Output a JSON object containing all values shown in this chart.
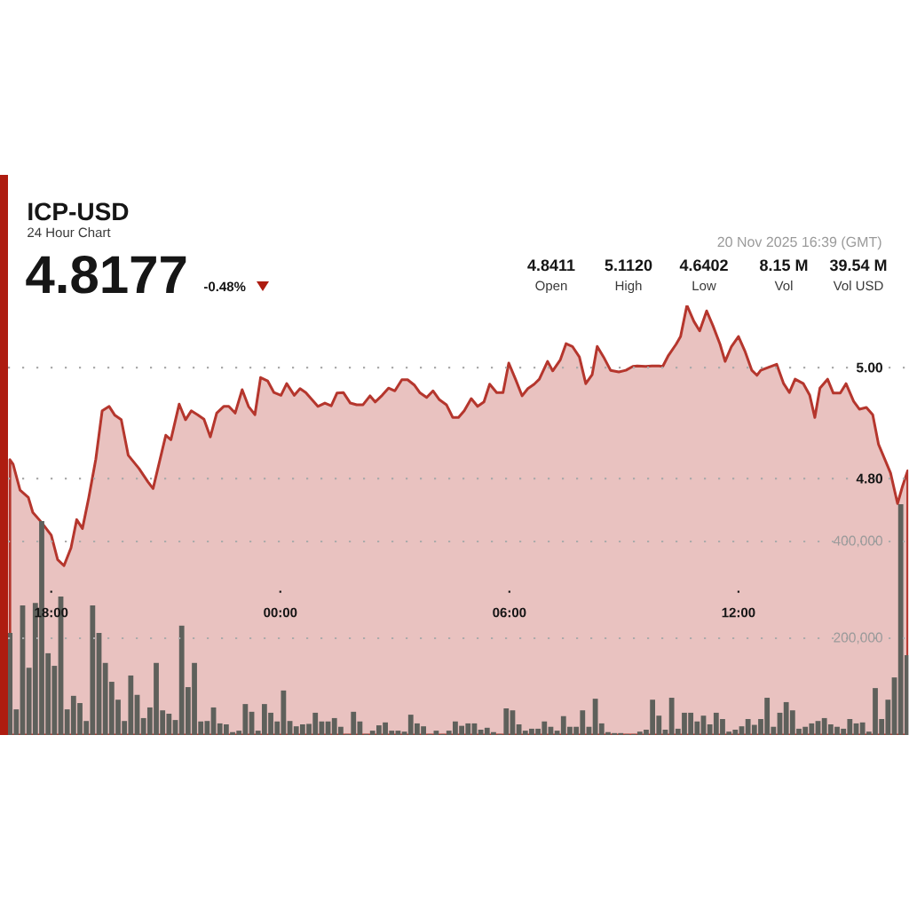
{
  "chart_data": {
    "type": "area",
    "title": "ICP-USD",
    "subtitle": "24 Hour Chart",
    "annotations": [
      "4.8177",
      "-0.48%",
      "4.8411",
      "Open",
      "5.1120",
      "High",
      "4.6402",
      "Low",
      "8.15 M",
      "Vol",
      "39.54 M",
      "Vol USD",
      "20 Nov 2025 16:39 (GMT)"
    ],
    "xlim": [
      "2025-11-19T16:52",
      "2025-11-20T16:28"
    ],
    "xticks": [
      {
        "value": "2025-11-19T18:00",
        "label": "18:00"
      },
      {
        "value": "2025-11-20T00:00",
        "label": "00:00"
      },
      {
        "value": "2025-11-20T06:00",
        "label": "06:00"
      },
      {
        "value": "2025-11-20T12:00",
        "label": "12:00"
      }
    ],
    "ylim": [
      4.338,
      5.112
    ],
    "yticks": [
      {
        "value": 4.8,
        "label": "4.80"
      },
      {
        "value": 5.0,
        "label": "5.00"
      }
    ],
    "y2lim": [
      0,
      888000
    ],
    "y2ticks": [
      {
        "value": 200000,
        "label": "200,000"
      },
      {
        "value": 400000,
        "label": "400,000"
      }
    ],
    "grid": "y",
    "series": [
      {
        "color": "#b5362d",
        "x": [
          "2025-11-19T16:55",
          "2025-11-19T17:00",
          "2025-11-19T17:11",
          "2025-11-19T17:24",
          "2025-11-19T17:31",
          "2025-11-19T17:44",
          "2025-11-19T18:00",
          "2025-11-19T18:10",
          "2025-11-19T18:20",
          "2025-11-19T18:31",
          "2025-11-19T18:40",
          "2025-11-19T18:49",
          "2025-11-19T18:59",
          "2025-11-19T19:10",
          "2025-11-19T19:20",
          "2025-11-19T19:31",
          "2025-11-19T19:40",
          "2025-11-19T19:50",
          "2025-11-19T20:01",
          "2025-11-19T20:18",
          "2025-11-19T20:32",
          "2025-11-19T20:40",
          "2025-11-19T21:00",
          "2025-11-19T21:08",
          "2025-11-19T21:21",
          "2025-11-19T21:31",
          "2025-11-19T21:40",
          "2025-11-19T21:50",
          "2025-11-19T22:00",
          "2025-11-19T22:10",
          "2025-11-19T22:20",
          "2025-11-19T22:31",
          "2025-11-19T22:39",
          "2025-11-19T22:49",
          "2025-11-19T23:00",
          "2025-11-19T23:10",
          "2025-11-19T23:20",
          "2025-11-19T23:29",
          "2025-11-19T23:40",
          "2025-11-19T23:50",
          "2025-11-20T00:01",
          "2025-11-20T00:10",
          "2025-11-20T00:22",
          "2025-11-20T00:31",
          "2025-11-20T00:40",
          "2025-11-20T00:59",
          "2025-11-20T01:10",
          "2025-11-20T01:20",
          "2025-11-20T01:29",
          "2025-11-20T01:39",
          "2025-11-20T01:50",
          "2025-11-20T02:00",
          "2025-11-20T02:10",
          "2025-11-20T02:21",
          "2025-11-20T02:29",
          "2025-11-20T02:40",
          "2025-11-20T02:50",
          "2025-11-20T03:00",
          "2025-11-20T03:11",
          "2025-11-20T03:20",
          "2025-11-20T03:31",
          "2025-11-20T03:39",
          "2025-11-20T03:50",
          "2025-11-20T04:00",
          "2025-11-20T04:10",
          "2025-11-20T04:21",
          "2025-11-20T04:31",
          "2025-11-20T04:40",
          "2025-11-20T04:49",
          "2025-11-20T05:00",
          "2025-11-20T05:10",
          "2025-11-20T05:20",
          "2025-11-20T05:29",
          "2025-11-20T05:40",
          "2025-11-20T05:50",
          "2025-11-20T05:59",
          "2025-11-20T06:10",
          "2025-11-20T06:20",
          "2025-11-20T06:29",
          "2025-11-20T06:39",
          "2025-11-20T06:47",
          "2025-11-20T07:00",
          "2025-11-20T07:08",
          "2025-11-20T07:20",
          "2025-11-20T07:29",
          "2025-11-20T07:39",
          "2025-11-20T07:50",
          "2025-11-20T08:00",
          "2025-11-20T08:10",
          "2025-11-20T08:18",
          "2025-11-20T08:28",
          "2025-11-20T08:39",
          "2025-11-20T08:52",
          "2025-11-20T09:03",
          "2025-11-20T09:14",
          "2025-11-20T09:21",
          "2025-11-20T09:34",
          "2025-11-20T09:44",
          "2025-11-20T09:55",
          "2025-11-20T10:01",
          "2025-11-20T10:10",
          "2025-11-20T10:22",
          "2025-11-20T10:29",
          "2025-11-20T10:39",
          "2025-11-20T10:50",
          "2025-11-20T10:59",
          "2025-11-20T11:10",
          "2025-11-20T11:20",
          "2025-11-20T11:31",
          "2025-11-20T11:39",
          "2025-11-20T11:49",
          "2025-11-20T12:00",
          "2025-11-20T12:10",
          "2025-11-20T12:21",
          "2025-11-20T12:29",
          "2025-11-20T12:35",
          "2025-11-20T12:46",
          "2025-11-20T13:00",
          "2025-11-20T13:11",
          "2025-11-20T13:20",
          "2025-11-20T13:29",
          "2025-11-20T13:42",
          "2025-11-20T13:52",
          "2025-11-20T14:00",
          "2025-11-20T14:08",
          "2025-11-20T14:20",
          "2025-11-20T14:29",
          "2025-11-20T14:40",
          "2025-11-20T14:49",
          "2025-11-20T15:01",
          "2025-11-20T15:10",
          "2025-11-20T15:21",
          "2025-11-20T15:31",
          "2025-11-20T15:40",
          "2025-11-20T15:59",
          "2025-11-20T16:10",
          "2025-11-20T16:18",
          "2025-11-20T16:26"
        ],
        "values": [
          4.834,
          4.826,
          4.779,
          4.766,
          4.739,
          4.722,
          4.698,
          4.654,
          4.643,
          4.675,
          4.726,
          4.71,
          4.766,
          4.835,
          4.922,
          4.93,
          4.914,
          4.906,
          4.842,
          4.818,
          4.794,
          4.782,
          4.878,
          4.87,
          4.934,
          4.906,
          4.922,
          4.915,
          4.907,
          4.875,
          4.918,
          4.93,
          4.93,
          4.918,
          4.96,
          4.93,
          4.915,
          4.982,
          4.976,
          4.955,
          4.95,
          4.971,
          4.95,
          4.962,
          4.955,
          4.93,
          4.936,
          4.931,
          4.954,
          4.955,
          4.936,
          4.933,
          4.933,
          4.949,
          4.938,
          4.95,
          4.963,
          4.958,
          4.978,
          4.978,
          4.968,
          4.955,
          4.946,
          4.958,
          4.942,
          4.933,
          4.91,
          4.91,
          4.922,
          4.944,
          4.93,
          4.938,
          4.97,
          4.955,
          4.955,
          5.008,
          4.978,
          4.949,
          4.962,
          4.97,
          4.979,
          5.011,
          4.994,
          5.014,
          5.043,
          5.038,
          5.019,
          4.971,
          4.987,
          5.038,
          5.019,
          4.995,
          4.992,
          4.995,
          5.002,
          5.003,
          5.002,
          5.003,
          5.003,
          5.002,
          5.022,
          5.042,
          5.056,
          5.112,
          5.083,
          5.066,
          5.102,
          5.075,
          5.042,
          5.011,
          5.038,
          5.056,
          5.03,
          4.995,
          4.986,
          4.995,
          5.0,
          5.006,
          4.971,
          4.955,
          4.979,
          4.971,
          4.95,
          4.91,
          4.963,
          4.979,
          4.954,
          4.954,
          4.971,
          4.939,
          4.925,
          4.928,
          4.915,
          4.862,
          4.81,
          4.755,
          4.787,
          4.814
        ]
      },
      {
        "type": "bar",
        "axis": "y2",
        "color": "#5e605b",
        "x": [
          "2025-11-19T16:55",
          "2025-11-19T17:05",
          "2025-11-19T17:15",
          "2025-11-19T17:25",
          "2025-11-19T17:35",
          "2025-11-19T17:45",
          "2025-11-19T17:55",
          "2025-11-19T18:05",
          "2025-11-19T18:15",
          "2025-11-19T18:25",
          "2025-11-19T18:35",
          "2025-11-19T18:45",
          "2025-11-19T18:55",
          "2025-11-19T19:05",
          "2025-11-19T19:15",
          "2025-11-19T19:25",
          "2025-11-19T19:35",
          "2025-11-19T19:45",
          "2025-11-19T19:55",
          "2025-11-19T20:05",
          "2025-11-19T20:15",
          "2025-11-19T20:25",
          "2025-11-19T20:35",
          "2025-11-19T20:45",
          "2025-11-19T20:55",
          "2025-11-19T21:05",
          "2025-11-19T21:15",
          "2025-11-19T21:25",
          "2025-11-19T21:35",
          "2025-11-19T21:45",
          "2025-11-19T21:55",
          "2025-11-19T22:05",
          "2025-11-19T22:15",
          "2025-11-19T22:25",
          "2025-11-19T22:35",
          "2025-11-19T22:45",
          "2025-11-19T22:55",
          "2025-11-19T23:05",
          "2025-11-19T23:15",
          "2025-11-19T23:25",
          "2025-11-19T23:35",
          "2025-11-19T23:45",
          "2025-11-19T23:55",
          "2025-11-20T00:05",
          "2025-11-20T00:15",
          "2025-11-20T00:25",
          "2025-11-20T00:35",
          "2025-11-20T00:45",
          "2025-11-20T00:55",
          "2025-11-20T01:05",
          "2025-11-20T01:15",
          "2025-11-20T01:25",
          "2025-11-20T01:35",
          "2025-11-20T01:45",
          "2025-11-20T01:55",
          "2025-11-20T02:05",
          "2025-11-20T02:15",
          "2025-11-20T02:25",
          "2025-11-20T02:35",
          "2025-11-20T02:45",
          "2025-11-20T02:55",
          "2025-11-20T03:05",
          "2025-11-20T03:15",
          "2025-11-20T03:25",
          "2025-11-20T03:35",
          "2025-11-20T03:45",
          "2025-11-20T03:55",
          "2025-11-20T04:05",
          "2025-11-20T04:15",
          "2025-11-20T04:25",
          "2025-11-20T04:35",
          "2025-11-20T04:45",
          "2025-11-20T04:55",
          "2025-11-20T05:05",
          "2025-11-20T05:15",
          "2025-11-20T05:25",
          "2025-11-20T05:35",
          "2025-11-20T05:45",
          "2025-11-20T05:55",
          "2025-11-20T06:05",
          "2025-11-20T06:15",
          "2025-11-20T06:25",
          "2025-11-20T06:35",
          "2025-11-20T06:45",
          "2025-11-20T06:55",
          "2025-11-20T07:05",
          "2025-11-20T07:15",
          "2025-11-20T07:25",
          "2025-11-20T07:35",
          "2025-11-20T07:45",
          "2025-11-20T07:55",
          "2025-11-20T08:05",
          "2025-11-20T08:15",
          "2025-11-20T08:25",
          "2025-11-20T08:35",
          "2025-11-20T08:45",
          "2025-11-20T08:55",
          "2025-11-20T09:05",
          "2025-11-20T09:15",
          "2025-11-20T09:25",
          "2025-11-20T09:35",
          "2025-11-20T09:45",
          "2025-11-20T09:55",
          "2025-11-20T10:05",
          "2025-11-20T10:15",
          "2025-11-20T10:25",
          "2025-11-20T10:35",
          "2025-11-20T10:45",
          "2025-11-20T10:55",
          "2025-11-20T11:05",
          "2025-11-20T11:15",
          "2025-11-20T11:25",
          "2025-11-20T11:35",
          "2025-11-20T11:45",
          "2025-11-20T11:55",
          "2025-11-20T12:05",
          "2025-11-20T12:15",
          "2025-11-20T12:25",
          "2025-11-20T12:35",
          "2025-11-20T12:45",
          "2025-11-20T12:55",
          "2025-11-20T13:05",
          "2025-11-20T13:15",
          "2025-11-20T13:25",
          "2025-11-20T13:35",
          "2025-11-20T13:45",
          "2025-11-20T13:55",
          "2025-11-20T14:05",
          "2025-11-20T14:15",
          "2025-11-20T14:25",
          "2025-11-20T14:35",
          "2025-11-20T14:45",
          "2025-11-20T14:55",
          "2025-11-20T15:05",
          "2025-11-20T15:15",
          "2025-11-20T15:25",
          "2025-11-20T15:35",
          "2025-11-20T15:45",
          "2025-11-20T15:55",
          "2025-11-20T16:05",
          "2025-11-20T16:15",
          "2025-11-20T16:25"
        ],
        "values": [
          211000,
          53000,
          268000,
          139000,
          273000,
          442000,
          169000,
          143000,
          286000,
          53000,
          81000,
          66000,
          29000,
          268000,
          211000,
          149000,
          110000,
          73000,
          29000,
          123000,
          83000,
          35000,
          57000,
          149000,
          51000,
          44000,
          31000,
          226000,
          99000,
          149000,
          28000,
          29000,
          57000,
          24000,
          22000,
          6000,
          9000,
          64000,
          48000,
          9000,
          64000,
          46000,
          28000,
          92000,
          29000,
          18000,
          22000,
          23000,
          46000,
          28000,
          28000,
          35000,
          17000,
          2000,
          48000,
          28000,
          2000,
          9000,
          20000,
          26000,
          9000,
          9000,
          7000,
          42000,
          24000,
          18000,
          2000,
          9000,
          2000,
          9000,
          28000,
          19000,
          24000,
          24000,
          11000,
          15000,
          6000,
          2000,
          55000,
          51000,
          22000,
          9000,
          13000,
          13000,
          28000,
          17000,
          9000,
          39000,
          17000,
          17000,
          51000,
          17000,
          75000,
          24000,
          6000,
          4000,
          4000,
          2000,
          2000,
          7000,
          11000,
          73000,
          40000,
          11000,
          77000,
          13000,
          46000,
          46000,
          28000,
          40000,
          22000,
          46000,
          33000,
          7000,
          11000,
          18000,
          33000,
          21000,
          33000,
          77000,
          17000,
          46000,
          68000,
          51000,
          13000,
          17000,
          24000,
          29000,
          35000,
          22000,
          17000,
          13000,
          33000,
          24000,
          26000,
          7000,
          97000,
          33000,
          73000,
          119000,
          477000,
          165000
        ]
      }
    ]
  }
}
